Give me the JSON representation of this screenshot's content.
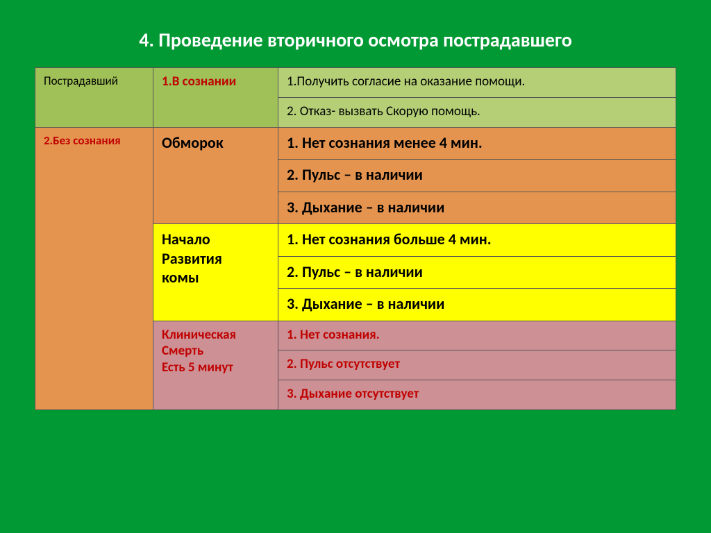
{
  "title": "4. Проведение вторичного осмотра пострадавшего",
  "col_left_header": "Пострадавший",
  "conscious_label": "1.В сознании",
  "consent": "1.Получить согласие на оказание помощи.",
  "refuse": "2. Отказ- вызвать Скорую помощь.",
  "unconscious_label": "2.Без сознания",
  "faint_label": "Обморок",
  "faint_1": "1. Нет сознания менее  4 мин.",
  "faint_2": "2. Пульс – в наличии",
  "faint_3": "3. Дыхание – в наличии",
  "coma_l1": "Начало",
  "coma_l2": "Развития",
  "coma_l3": "комы",
  "coma_1": "1. Нет сознания больше 4 мин.",
  "coma_2": "2. Пульс – в наличии",
  "coma_3": "3. Дыхание – в наличии",
  "clin_l1": "Клиническая",
  "clin_l2": "Смерть",
  "clin_l3": "Есть 5 минут",
  "clin_1": "1. Нет сознания.",
  "clin_2": "2. Пульс  отсутствует",
  "clin_3": "3. Дыхание отсутствует",
  "styling": {
    "page_bg": "#009933",
    "title_color": "#ffffff",
    "green_dark": "#9fc157",
    "green_light": "#b4cf76",
    "orange": "#e59450",
    "yellow": "#ffff00",
    "pink": "#cd9094",
    "red_text": "#c00000",
    "border": "#555555",
    "title_fontsize": 28,
    "cell_fontsize_main": 22,
    "cell_fontsize_small": 17,
    "cell_fontsize_mid": 19
  }
}
